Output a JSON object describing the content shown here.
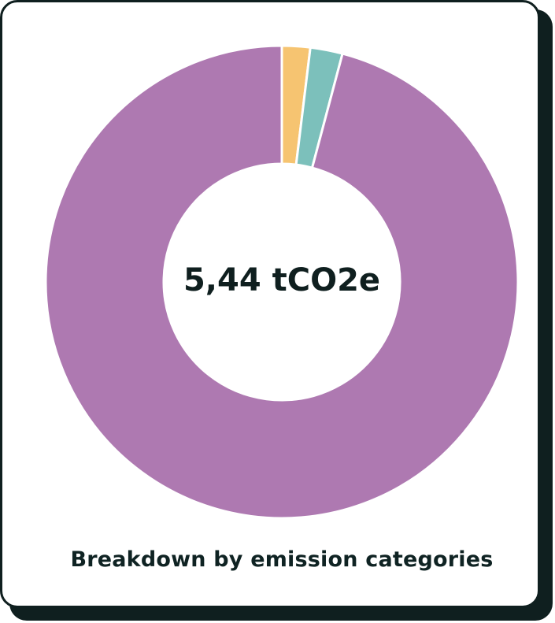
{
  "chart_data": {
    "type": "pie",
    "center_label": "5,44 tCO2e",
    "caption": "Breakdown by emission categories",
    "slices": [
      {
        "value": 0.105,
        "color": "#f6c471"
      },
      {
        "value": 0.12,
        "color": "#7cc0bb"
      },
      {
        "value": 5.215,
        "color": "#ae79b1"
      }
    ],
    "total": 5.44,
    "donut": true,
    "legend": "none"
  }
}
